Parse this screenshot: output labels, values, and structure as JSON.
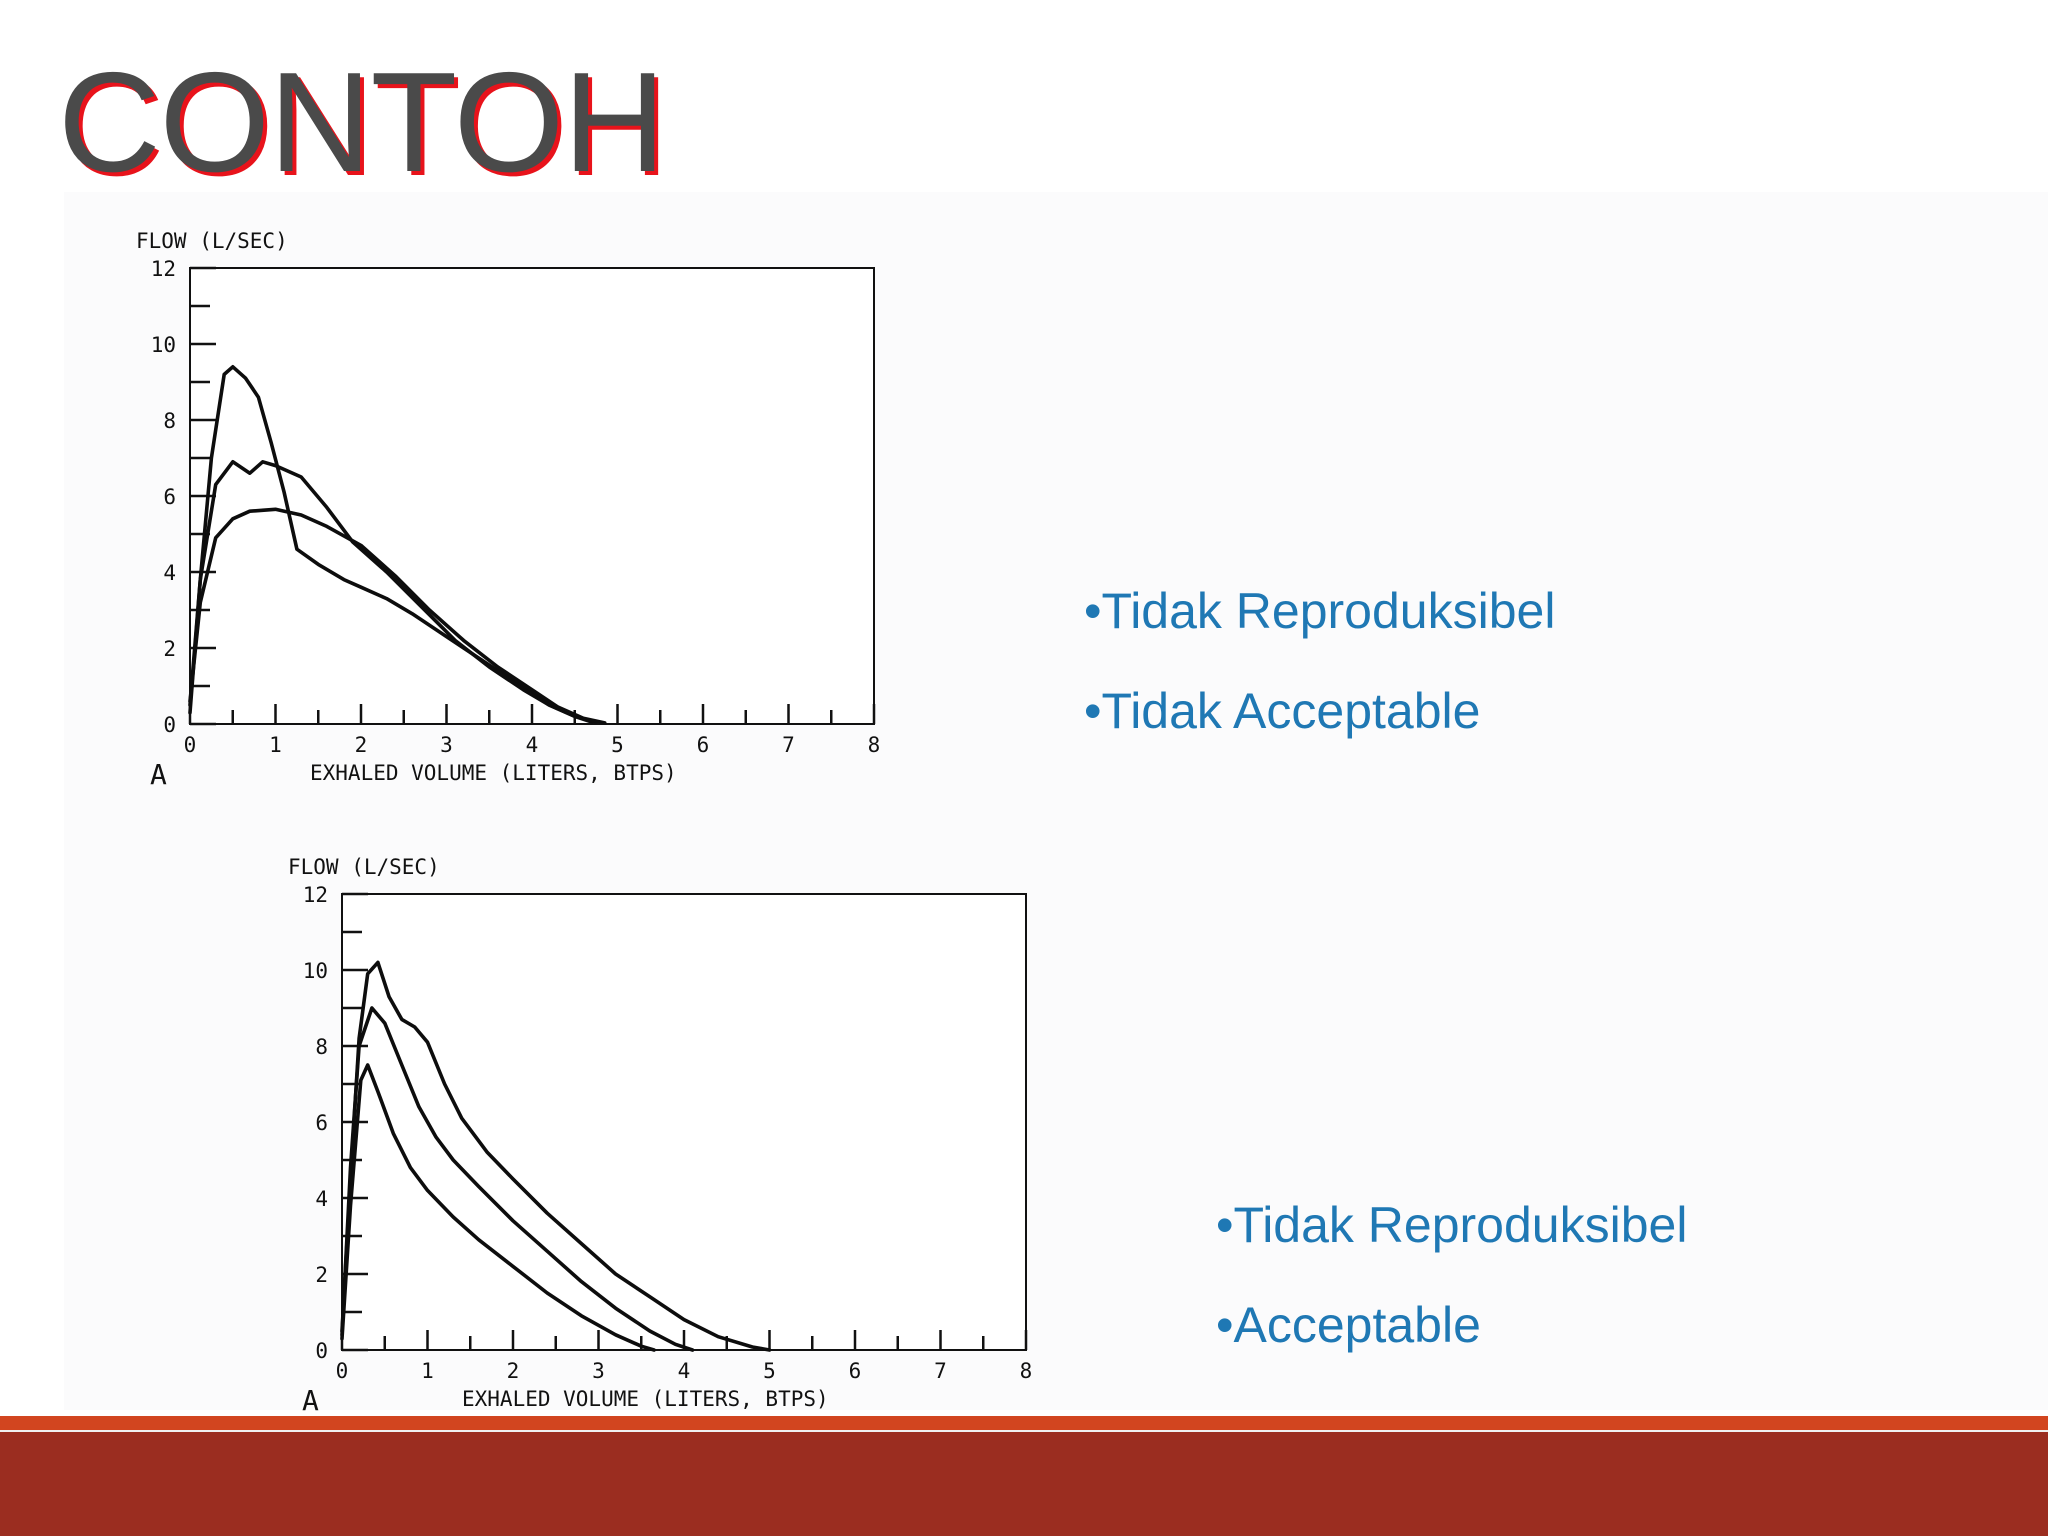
{
  "slide": {
    "title": "CONTOH"
  },
  "colors": {
    "title_text": "#4a4a4a",
    "title_shadow": "#e8131b",
    "bullet_text": "#1f78b4",
    "footer_band": "#9b2d20",
    "footer_accent": "#d2451f"
  },
  "chart_data": [
    {
      "type": "line",
      "panel_label": "A",
      "ylabel": "FLOW (L/SEC)",
      "xlabel": "EXHALED VOLUME (LITERS, BTPS)",
      "xlim": [
        0,
        8
      ],
      "ylim": [
        0,
        12
      ],
      "x_ticks": [
        "0",
        "1",
        "2",
        "3",
        "4",
        "5",
        "6",
        "7",
        "8"
      ],
      "y_ticks": [
        "0",
        "2",
        "4",
        "6",
        "8",
        "10",
        "12"
      ],
      "grid": false,
      "series": [
        {
          "x": [
            0,
            0.12,
            0.25,
            0.4,
            0.5,
            0.65,
            0.8,
            0.95,
            1.1,
            1.25,
            1.5,
            1.8,
            2.0,
            2.3,
            2.6,
            3.0,
            3.4,
            3.8,
            4.2,
            4.5,
            4.7
          ],
          "y": [
            0.3,
            3.8,
            7.0,
            9.2,
            9.4,
            9.1,
            8.6,
            7.4,
            6.1,
            4.6,
            4.2,
            3.8,
            3.6,
            3.3,
            2.9,
            2.3,
            1.7,
            1.1,
            0.5,
            0.2,
            0.05
          ]
        },
        {
          "x": [
            0,
            0.12,
            0.3,
            0.5,
            0.7,
            0.85,
            1.0,
            1.3,
            1.6,
            1.9,
            2.3,
            2.7,
            3.1,
            3.5,
            3.9,
            4.2,
            4.5,
            4.75
          ],
          "y": [
            0.5,
            3.8,
            6.3,
            6.9,
            6.6,
            6.9,
            6.8,
            6.5,
            5.7,
            4.8,
            4.0,
            3.1,
            2.2,
            1.5,
            0.9,
            0.5,
            0.2,
            0.05
          ]
        },
        {
          "x": [
            0,
            0.12,
            0.3,
            0.5,
            0.7,
            1.0,
            1.3,
            1.6,
            2.0,
            2.4,
            2.8,
            3.2,
            3.6,
            4.0,
            4.3,
            4.6,
            4.85
          ],
          "y": [
            0.6,
            3.2,
            4.9,
            5.4,
            5.6,
            5.65,
            5.5,
            5.2,
            4.7,
            3.9,
            3.0,
            2.2,
            1.5,
            0.9,
            0.45,
            0.15,
            0.03
          ]
        }
      ]
    },
    {
      "type": "line",
      "panel_label": "A",
      "ylabel": "FLOW (L/SEC)",
      "xlabel": "EXHALED VOLUME (LITERS, BTPS)",
      "xlim": [
        0,
        8
      ],
      "ylim": [
        0,
        12
      ],
      "x_ticks": [
        "0",
        "1",
        "2",
        "3",
        "4",
        "5",
        "6",
        "7",
        "8"
      ],
      "y_ticks": [
        "0",
        "2",
        "4",
        "6",
        "8",
        "10",
        "12"
      ],
      "grid": false,
      "series": [
        {
          "x": [
            0,
            0.1,
            0.2,
            0.3,
            0.42,
            0.55,
            0.7,
            0.85,
            1.0,
            1.2,
            1.4,
            1.7,
            2.0,
            2.4,
            2.8,
            3.2,
            3.6,
            4.0,
            4.4,
            4.8,
            5.0
          ],
          "y": [
            0.5,
            4.5,
            8.2,
            9.9,
            10.2,
            9.3,
            8.7,
            8.5,
            8.1,
            7.0,
            6.1,
            5.2,
            4.5,
            3.6,
            2.8,
            2.0,
            1.4,
            0.8,
            0.35,
            0.08,
            0.0
          ]
        },
        {
          "x": [
            0,
            0.1,
            0.2,
            0.35,
            0.5,
            0.7,
            0.9,
            1.1,
            1.3,
            1.6,
            2.0,
            2.4,
            2.8,
            3.2,
            3.6,
            3.9,
            4.1
          ],
          "y": [
            0.4,
            4.8,
            8.0,
            9.0,
            8.6,
            7.5,
            6.4,
            5.6,
            5.0,
            4.3,
            3.4,
            2.6,
            1.8,
            1.1,
            0.5,
            0.15,
            0.0
          ]
        },
        {
          "x": [
            0,
            0.1,
            0.22,
            0.3,
            0.42,
            0.6,
            0.8,
            1.0,
            1.3,
            1.6,
            2.0,
            2.4,
            2.8,
            3.2,
            3.5,
            3.65
          ],
          "y": [
            0.3,
            3.8,
            7.1,
            7.5,
            6.8,
            5.7,
            4.8,
            4.2,
            3.5,
            2.9,
            2.2,
            1.5,
            0.9,
            0.4,
            0.1,
            0.0
          ]
        }
      ]
    }
  ],
  "notes": [
    {
      "items": [
        "•Tidak Reproduksibel",
        "•Tidak Acceptable"
      ]
    },
    {
      "items": [
        "•Tidak Reproduksibel",
        "•Acceptable"
      ]
    }
  ]
}
